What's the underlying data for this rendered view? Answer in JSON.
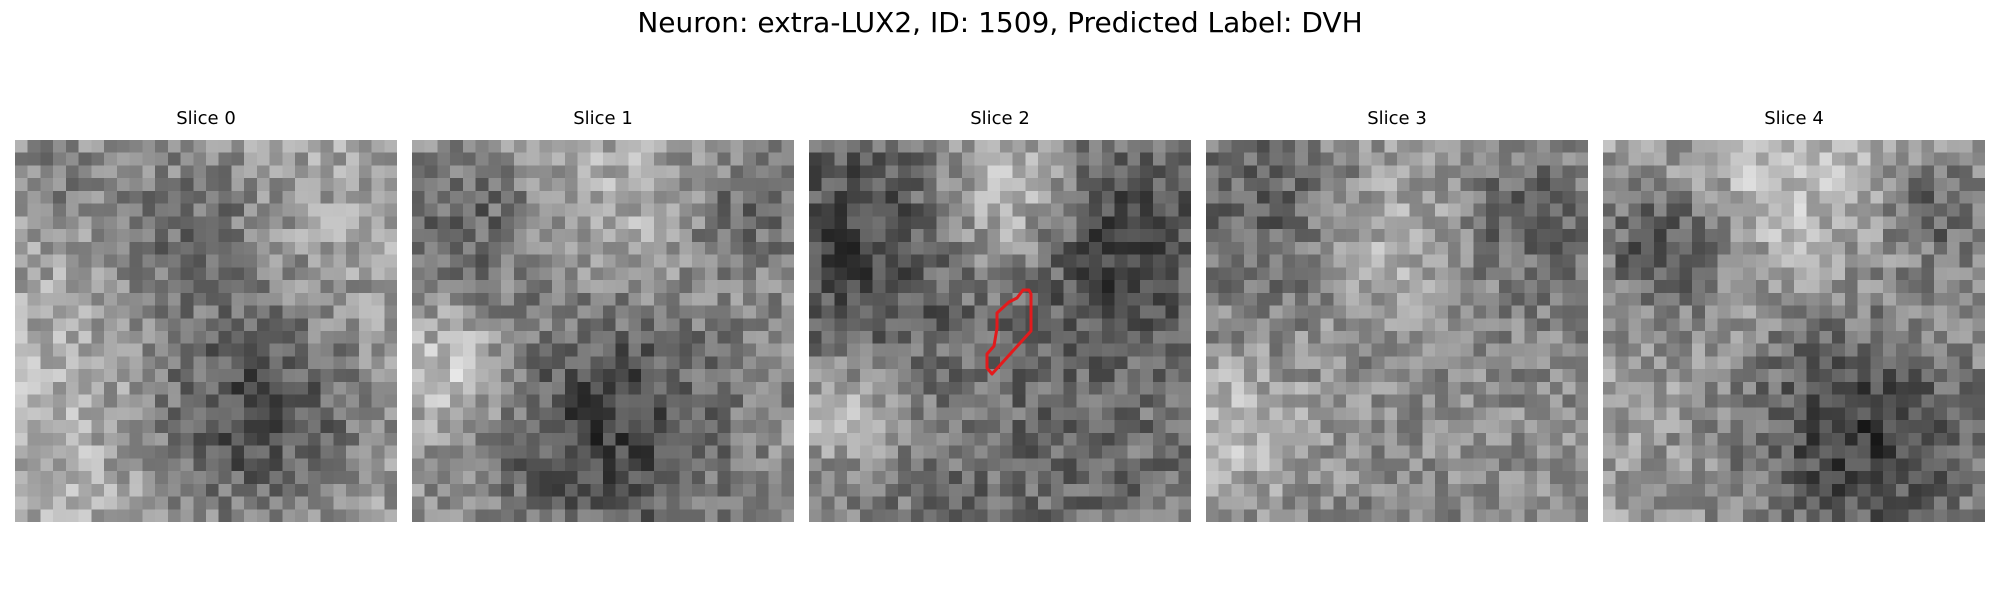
{
  "figure": {
    "title": "Neuron: extra-LUX2, ID: 1509, Predicted Label: DVH",
    "colormap": "grayscale"
  },
  "panels": [
    {
      "title": "Slice 0",
      "has_outline": false
    },
    {
      "title": "Slice 1",
      "has_outline": false
    },
    {
      "title": "Slice 2",
      "has_outline": true
    },
    {
      "title": "Slice 3",
      "has_outline": false
    },
    {
      "title": "Slice 4",
      "has_outline": false
    }
  ],
  "outline_color": "#e41a1c"
}
